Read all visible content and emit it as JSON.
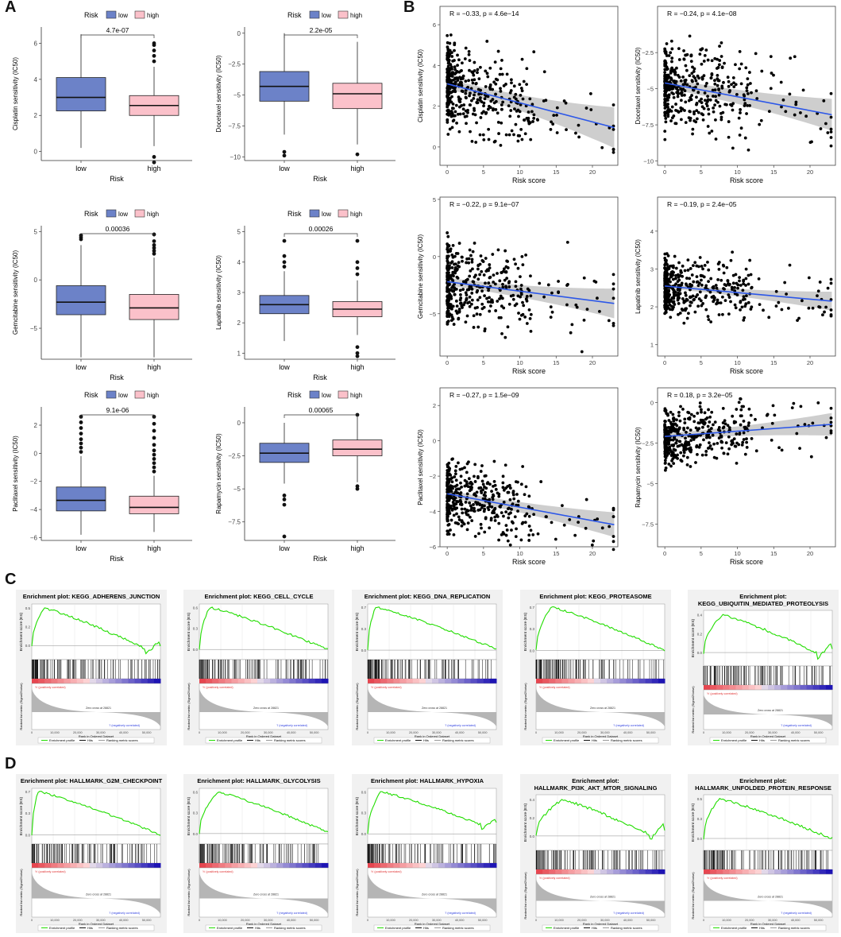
{
  "panels": {
    "a": "A",
    "b": "B",
    "c": "C",
    "d": "D"
  },
  "colors": {
    "low": "#6c82c8",
    "high": "#fbc1ca",
    "fit": "#2c57e8",
    "es": "#22dd00"
  },
  "legend_title": "Risk",
  "groups": [
    "low",
    "high"
  ],
  "xlabel_box": "Risk",
  "xlabel_scatter": "Risk score",
  "chart_data": [
    {
      "type": "box",
      "drug": "Cisplatin",
      "ylabel": "Cisplatin sensitivity (IC50)",
      "pvalue": "4.7e-07",
      "ylim": [
        -0.5,
        6.9
      ],
      "yticks": [
        0,
        2,
        4,
        6
      ],
      "low": {
        "min": 0.2,
        "q1": 2.25,
        "median": 3.0,
        "q3": 4.1,
        "max": 6.5,
        "outliers": []
      },
      "high": {
        "min": 0.3,
        "q1": 2.0,
        "median": 2.55,
        "q3": 3.1,
        "max": 4.7,
        "outliers": [
          5.0,
          5.3,
          5.6,
          5.9,
          6.0,
          -0.3,
          -0.6
        ]
      }
    },
    {
      "type": "box",
      "drug": "Docetaxel",
      "ylabel": "Docetaxel sensitivity (IC50)",
      "pvalue": "2.2e-05",
      "ylim": [
        -10.3,
        0.5
      ],
      "yticks": [
        0,
        -2.5,
        -5,
        -7.5,
        -10
      ],
      "low": {
        "min": -8.2,
        "q1": -5.5,
        "median": -4.3,
        "q3": -3.1,
        "max": 0.0,
        "outliers": [
          -9.6,
          -9.9
        ]
      },
      "high": {
        "min": -9.0,
        "q1": -6.1,
        "median": -4.9,
        "q3": -4.05,
        "max": -0.7,
        "outliers": [
          -9.8
        ]
      }
    },
    {
      "type": "box",
      "drug": "Gemcitabine",
      "ylabel": "Gemcitabine sensitivity (IC50)",
      "pvalue": "0.00036",
      "ylim": [
        -8.2,
        5.6
      ],
      "yticks": [
        5,
        0,
        -5
      ],
      "low": {
        "min": -8.0,
        "q1": -3.6,
        "median": -2.3,
        "q3": -0.6,
        "max": 3.6,
        "outliers": [
          4.2,
          4.4,
          4.6
        ]
      },
      "high": {
        "min": -8.0,
        "q1": -4.1,
        "median": -2.9,
        "q3": -1.5,
        "max": 2.3,
        "outliers": [
          2.7,
          3.0,
          3.3,
          3.6,
          4.0,
          4.7
        ]
      }
    },
    {
      "type": "box",
      "drug": "Lapatinib",
      "ylabel": "Lapatinib sensitivity (IC50)",
      "pvalue": "0.00026",
      "ylim": [
        0.8,
        5.2
      ],
      "yticks": [
        1,
        2,
        3,
        4,
        5
      ],
      "low": {
        "min": 1.4,
        "q1": 2.3,
        "median": 2.6,
        "q3": 2.9,
        "max": 3.7,
        "outliers": [
          3.85,
          4.0,
          4.2,
          4.7
        ]
      },
      "high": {
        "min": 1.6,
        "q1": 2.2,
        "median": 2.45,
        "q3": 2.7,
        "max": 3.4,
        "outliers": [
          3.6,
          3.8,
          4.0,
          4.7,
          1.2,
          1.0,
          0.9
        ]
      }
    },
    {
      "type": "box",
      "drug": "Paclitaxel",
      "ylabel": "Paclitaxel sensitivity (IC50)",
      "pvalue": "9.1e-06",
      "ylim": [
        -6.2,
        3.3
      ],
      "yticks": [
        2,
        0,
        -2,
        -4,
        -6
      ],
      "low": {
        "min": -5.8,
        "q1": -4.1,
        "median": -3.35,
        "q3": -2.4,
        "max": -0.2,
        "outliers": [
          0.1,
          0.4,
          0.7,
          1.0,
          1.4,
          1.8,
          2.2,
          2.6
        ]
      },
      "high": {
        "min": -5.6,
        "q1": -4.3,
        "median": -3.85,
        "q3": -3.05,
        "max": -1.6,
        "outliers": [
          -1.3,
          -1.0,
          -0.7,
          -0.4,
          -0.1,
          0.2,
          0.6,
          1.1,
          1.6,
          2.1,
          2.6
        ]
      }
    },
    {
      "type": "box",
      "drug": "Rapamycin",
      "ylabel": "Rapamycin sensitivity (IC50)",
      "pvalue": "0.00065",
      "ylim": [
        -8.9,
        1.2
      ],
      "yticks": [
        0,
        -2.5,
        -5,
        -7.5
      ],
      "low": {
        "min": -4.6,
        "q1": -3.0,
        "median": -2.3,
        "q3": -1.55,
        "max": 0.0,
        "outliers": [
          -5.5,
          -5.8,
          -6.2,
          -8.6
        ]
      },
      "high": {
        "min": -4.5,
        "q1": -2.5,
        "median": -2.0,
        "q3": -1.3,
        "max": 0.4,
        "outliers": [
          0.6,
          -4.8,
          -5.0
        ]
      }
    },
    {
      "type": "scatter",
      "drug": "Cisplatin",
      "ylabel": "Cisplatin sensitivity (IC50)",
      "annotation": "R = −0.33, p = 4.6e−14",
      "xlim": [
        -1,
        23.5
      ],
      "ylim": [
        -0.9,
        6.9
      ],
      "yticks": [
        0,
        2,
        4,
        6
      ],
      "xticks": [
        0,
        5,
        10,
        15,
        20
      ],
      "fit": [
        [
          0,
          3.1
        ],
        [
          23,
          0.95
        ]
      ],
      "band": [
        0.25,
        1.0
      ],
      "center": 2.9,
      "spread": 1.6,
      "seed": 11
    },
    {
      "type": "scatter",
      "drug": "Docetaxel",
      "ylabel": "Docetaxel sensitivity (IC50)",
      "annotation": "R = −0.24, p = 4.1e−08",
      "xlim": [
        -1,
        23.5
      ],
      "ylim": [
        -10.3,
        0.7
      ],
      "yticks": [
        -2.5,
        -5,
        -7.5,
        -10
      ],
      "xticks": [
        0,
        5,
        10,
        15,
        20
      ],
      "fit": [
        [
          0,
          -4.6
        ],
        [
          23,
          -6.8
        ]
      ],
      "band": [
        0.35,
        1.1
      ],
      "center": -4.8,
      "spread": 2.2,
      "seed": 23
    },
    {
      "type": "scatter",
      "drug": "Gemcitabine",
      "ylabel": "Gemcitabine sensitivity (IC50)",
      "annotation": "R = −0.22, p = 9.1e−07",
      "xlim": [
        -1,
        23.5
      ],
      "ylim": [
        -8.7,
        5.2
      ],
      "yticks": [
        5,
        0,
        -5
      ],
      "xticks": [
        0,
        5,
        10,
        15,
        20
      ],
      "fit": [
        [
          0,
          -2.2
        ],
        [
          23,
          -4.1
        ]
      ],
      "band": [
        0.35,
        1.3
      ],
      "center": -2.3,
      "spread": 2.8,
      "seed": 37
    },
    {
      "type": "scatter",
      "drug": "Lapatinib",
      "ylabel": "Lapatinib sensitivity (IC50)",
      "annotation": "R = −0.19, p = 2.4e−05",
      "xlim": [
        -1,
        23.5
      ],
      "ylim": [
        0.7,
        4.9
      ],
      "yticks": [
        1,
        2,
        3,
        4
      ],
      "xticks": [
        0,
        5,
        10,
        15,
        20
      ],
      "fit": [
        [
          0,
          2.55
        ],
        [
          23,
          2.15
        ]
      ],
      "band": [
        0.06,
        0.25
      ],
      "center": 2.5,
      "spread": 0.6,
      "seed": 41
    },
    {
      "type": "scatter",
      "drug": "Paclitaxel",
      "ylabel": "Paclitaxel sensitivity (IC50)",
      "annotation": "R = −0.27, p = 1.5e−09",
      "xlim": [
        -1,
        23.5
      ],
      "ylim": [
        -6.0,
        3.0
      ],
      "yticks": [
        2,
        0,
        -2,
        -4,
        -6
      ],
      "xticks": [
        0,
        5,
        10,
        15,
        20
      ],
      "fit": [
        [
          0,
          -3.0
        ],
        [
          23,
          -4.75
        ]
      ],
      "band": [
        0.2,
        0.7
      ],
      "center": -3.3,
      "spread": 1.6,
      "seed": 53
    },
    {
      "type": "scatter",
      "drug": "Rapamycin",
      "ylabel": "Rapamycin sensitivity (IC50)",
      "annotation": "R = 0.18, p = 3.2e−05",
      "xlim": [
        -1,
        23.5
      ],
      "ylim": [
        -8.9,
        0.9
      ],
      "yticks": [
        0,
        -2.5,
        -5,
        -7.5
      ],
      "xticks": [
        0,
        5,
        10,
        15,
        20
      ],
      "fit": [
        [
          0,
          -2.1
        ],
        [
          23,
          -1.35
        ]
      ],
      "band": [
        0.2,
        0.7
      ],
      "center": -2.1,
      "spread": 1.3,
      "seed": 67
    },
    {
      "type": "gsea",
      "title1": "Enrichment plot: KEGG_ADHERENS_JUNCTION",
      "title2": "",
      "peak": 0.45,
      "peak_at": 0.1,
      "end": -0.12,
      "tail_up": true,
      "seed": 3
    },
    {
      "type": "gsea",
      "title1": "Enrichment plot: KEGG_CELL_CYCLE",
      "title2": "",
      "peak": 0.62,
      "peak_at": 0.08,
      "end": 0.0,
      "tail_up": false,
      "seed": 5
    },
    {
      "type": "gsea",
      "title1": "Enrichment plot: KEGG_DNA_REPLICATION",
      "title2": "",
      "peak": 0.68,
      "peak_at": 0.06,
      "end": 0.02,
      "tail_up": false,
      "seed": 7
    },
    {
      "type": "gsea",
      "title1": "Enrichment plot: KEGG_PROTEASOME",
      "title2": "",
      "peak": 0.7,
      "peak_at": 0.12,
      "end": 0.0,
      "tail_up": false,
      "seed": 9
    },
    {
      "type": "gsea",
      "title1": "Enrichment plot:",
      "title2": "KEGG_UBIQUITIN_MEDIATED_PROTEOLYSIS",
      "peak": 0.42,
      "peak_at": 0.15,
      "end": -0.08,
      "tail_up": true,
      "seed": 13
    },
    {
      "type": "gsea",
      "title1": "Enrichment plot: HALLMARK_G2M_CHECKPOINT",
      "title2": "",
      "peak": 0.7,
      "peak_at": 0.05,
      "end": 0.0,
      "tail_up": false,
      "seed": 15
    },
    {
      "type": "gsea",
      "title1": "Enrichment plot: HALLMARK_GLYCOLYSIS",
      "title2": "",
      "peak": 0.6,
      "peak_at": 0.14,
      "end": 0.02,
      "tail_up": false,
      "seed": 17
    },
    {
      "type": "gsea",
      "title1": "Enrichment plot: HALLMARK_HYPOXIA",
      "title2": "",
      "peak": 0.62,
      "peak_at": 0.1,
      "end": 0.05,
      "tail_up": true,
      "seed": 19
    },
    {
      "type": "gsea",
      "title1": "Enrichment plot:",
      "title2": "HALLMARK_PI3K_AKT_MTOR_SIGNALING",
      "peak": 0.38,
      "peak_at": 0.2,
      "end": -0.05,
      "tail_up": true,
      "seed": 21
    },
    {
      "type": "gsea",
      "title1": "Enrichment plot:",
      "title2": "HALLMARK_UNFOLDED_PROTEIN_RESPONSE",
      "peak": 0.5,
      "peak_at": 0.12,
      "end": 0.0,
      "tail_up": false,
      "seed": 27
    }
  ],
  "gsea_common": {
    "es_label": "Enrichment score (ES)",
    "metric_label": "Ranked list metric (Signal2Noise)",
    "xlabel": "Rank in Ordered Dataset",
    "pos_label": "'h' (positively correlated)",
    "neg_label": "'l' (negatively correlated)",
    "zero_cross": "Zero cross at 28821",
    "legend_profile": "Enrichment profile",
    "legend_hits": "Hits",
    "legend_metric": "Ranking metric scores",
    "xticks": [
      "0",
      "10,000",
      "20,000",
      "30,000",
      "40,000",
      "50,000"
    ]
  }
}
